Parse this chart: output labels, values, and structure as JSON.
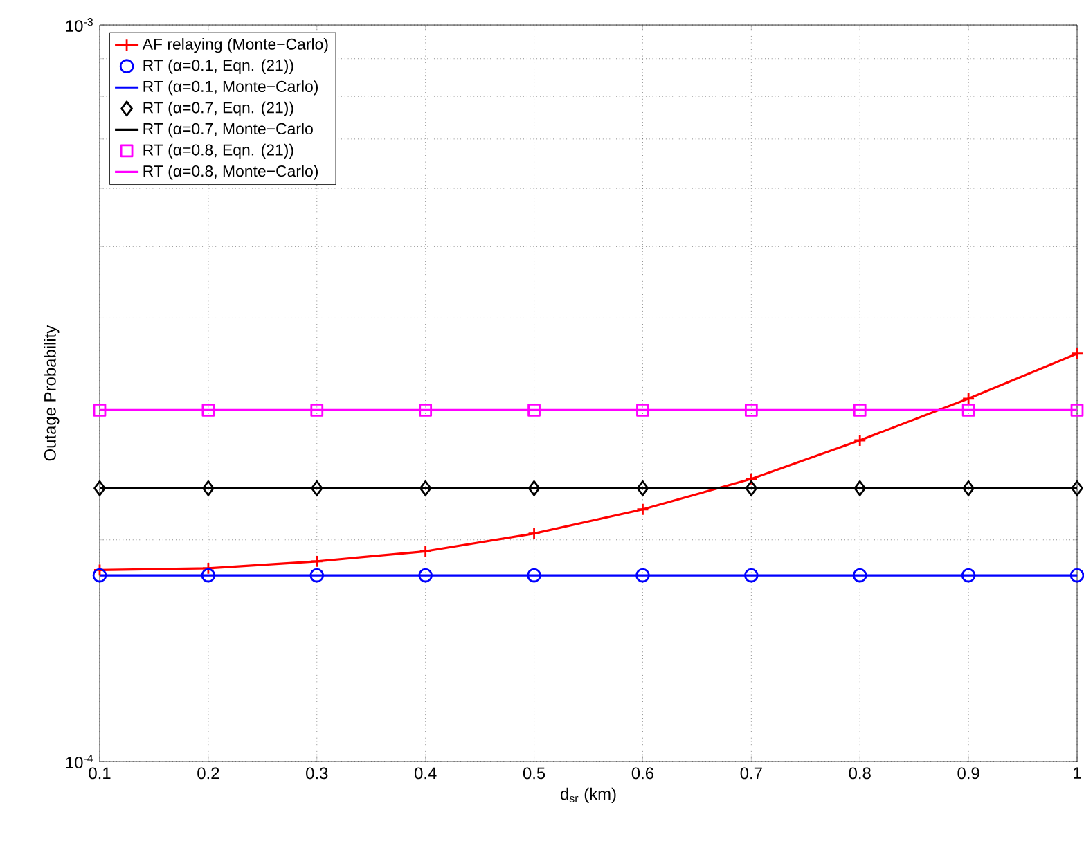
{
  "chart_data": {
    "type": "line",
    "xlabel": "d$_{sr}$ (km)",
    "ylabel": "Outage Probability",
    "log": "y",
    "grid": true,
    "legend": "top left",
    "x": [
      0.1,
      0.2,
      0.3,
      0.4,
      0.5,
      0.6,
      0.7,
      0.8,
      0.9,
      1.0
    ],
    "xlim": [
      0.1,
      1
    ],
    "xticks": [
      0.1,
      0.2,
      0.3,
      0.4,
      0.5,
      0.6,
      0.7,
      0.8,
      0.9,
      1
    ],
    "ylim": [
      0.0001,
      0.001
    ],
    "yticks": [
      {
        "value": 0.0001,
        "label": "10$^{-4}$"
      },
      {
        "value": 0.001,
        "label": "10$^{-3}$"
      }
    ],
    "series": [
      {
        "name": "AF relaying (Monte−Carlo)",
        "color": "#ff0000",
        "marker": "cross",
        "line_style": "solid",
        "values": [
          0.000182,
          0.000183,
          0.000187,
          0.000193,
          0.000204,
          0.00022,
          0.000242,
          0.000273,
          0.000311,
          0.000358
        ]
      },
      {
        "name": "RT (α=0.1, Eqn. (21))",
        "color": "#0000ff",
        "type": "scatter",
        "marker": "circle",
        "values": [
          0.000179,
          0.000179,
          0.000179,
          0.000179,
          0.000179,
          0.000179,
          0.000179,
          0.000179,
          0.000179,
          0.000179
        ]
      },
      {
        "name": "RT (α=0.1, Monte−Carlo)",
        "color": "#0000ff",
        "marker": "none",
        "line_style": "solid",
        "values": [
          0.000179,
          0.000179,
          0.000179,
          0.000179,
          0.000179,
          0.000179,
          0.000179,
          0.000179,
          0.000179,
          0.000179
        ]
      },
      {
        "name": "RT (α=0.7, Eqn. (21))",
        "color": "#000000",
        "type": "scatter",
        "marker": "diamond",
        "values": [
          0.000235,
          0.000235,
          0.000235,
          0.000235,
          0.000235,
          0.000235,
          0.000235,
          0.000235,
          0.000235,
          0.000235
        ]
      },
      {
        "name": "RT (α=0.7, Monte−Carlo",
        "color": "#000000",
        "marker": "none",
        "line_style": "solid",
        "values": [
          0.000235,
          0.000235,
          0.000235,
          0.000235,
          0.000235,
          0.000235,
          0.000235,
          0.000235,
          0.000235,
          0.000235
        ]
      },
      {
        "name": "RT (α=0.8, Eqn. (21))",
        "color": "#ff00ff",
        "type": "scatter",
        "marker": "square",
        "values": [
          0.0003,
          0.0003,
          0.0003,
          0.0003,
          0.0003,
          0.0003,
          0.0003,
          0.0003,
          0.0003,
          0.0003
        ]
      },
      {
        "name": "RT (α=0.8, Monte−Carlo)",
        "color": "#ff00ff",
        "marker": "none",
        "line_style": "solid",
        "values": [
          0.0003,
          0.0003,
          0.0003,
          0.0003,
          0.0003,
          0.0003,
          0.0003,
          0.0003,
          0.0003,
          0.0003
        ]
      }
    ]
  }
}
